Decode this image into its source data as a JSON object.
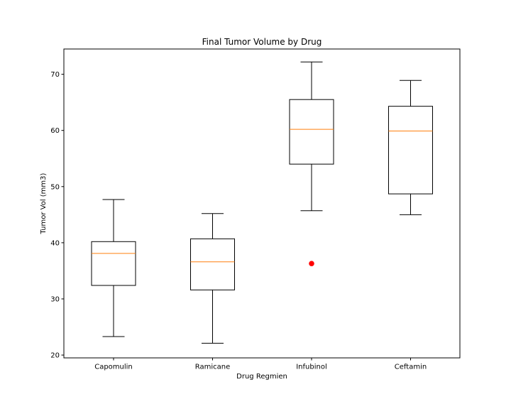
{
  "chart_data": {
    "type": "boxplot",
    "title": "Final Tumor Volume by Drug",
    "xlabel": "Drug Regmien",
    "ylabel": "Tumor Vol (mm3)",
    "ylim": [
      19.5,
      74.5
    ],
    "yticks": [
      20,
      30,
      40,
      50,
      60,
      70
    ],
    "grid": false,
    "categories": [
      "Capomulin",
      "Ramicane",
      "Infubinol",
      "Ceftamin"
    ],
    "boxes": [
      {
        "name": "Capomulin",
        "whislo": 23.3,
        "q1": 32.4,
        "med": 38.1,
        "q3": 40.2,
        "whishi": 47.7,
        "fliers": []
      },
      {
        "name": "Ramicane",
        "whislo": 22.1,
        "q1": 31.6,
        "med": 36.6,
        "q3": 40.7,
        "whishi": 45.2,
        "fliers": []
      },
      {
        "name": "Infubinol",
        "whislo": 45.7,
        "q1": 54.0,
        "med": 60.2,
        "q3": 65.5,
        "whishi": 72.2,
        "fliers": [
          36.3
        ]
      },
      {
        "name": "Ceftamin",
        "whislo": 45.0,
        "q1": 48.7,
        "med": 59.9,
        "q3": 64.3,
        "whishi": 68.9,
        "fliers": []
      }
    ],
    "colors": {
      "box": "#000000",
      "median": "#ff7f0e",
      "flier": "#ff0000"
    }
  }
}
